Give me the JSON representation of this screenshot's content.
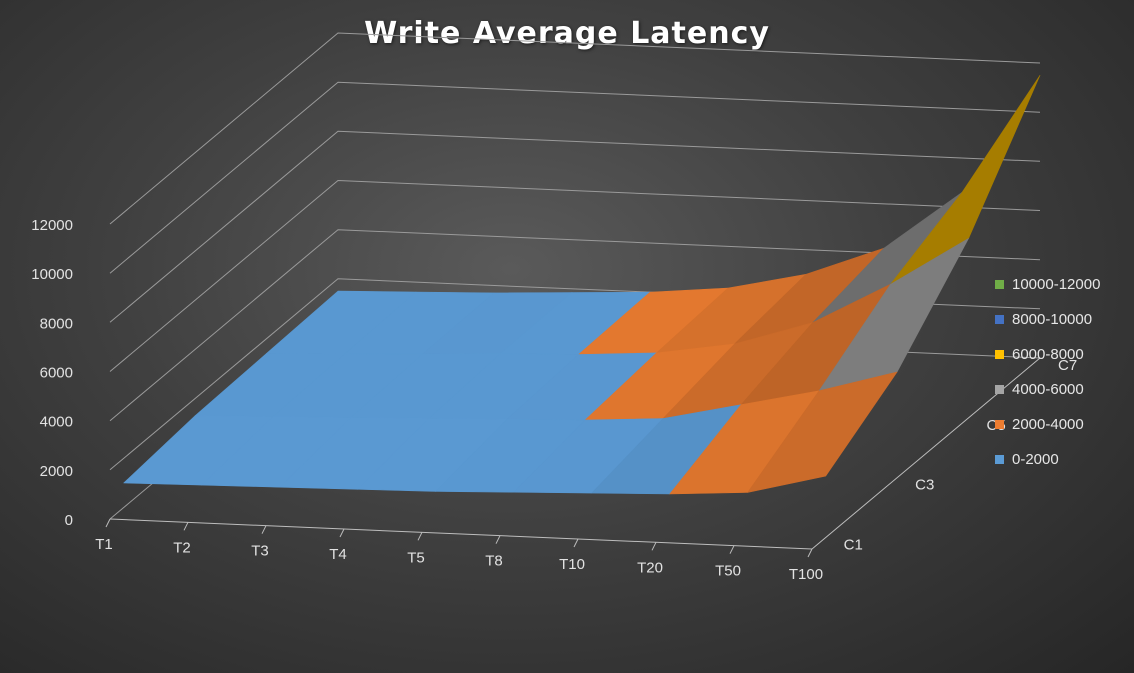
{
  "chart_data": {
    "type": "surface",
    "title": "Write Average Latency",
    "xlabel": "",
    "ylabel": "",
    "zlabel": "",
    "x_categories": [
      "T1",
      "T2",
      "T3",
      "T4",
      "T5",
      "T8",
      "T10",
      "T20",
      "T50",
      "T100"
    ],
    "y_categories": [
      "C1",
      "C3",
      "C5",
      "C7"
    ],
    "z_ticks": [
      "0",
      "2000",
      "4000",
      "6000",
      "8000",
      "10000",
      "12000"
    ],
    "zlim": [
      0,
      12000
    ],
    "series": [
      {
        "name": "C1",
        "values": [
          1000,
          1050,
          1100,
          1150,
          1200,
          1300,
          1400,
          1500,
          1700,
          2500
        ]
      },
      {
        "name": "C3",
        "values": [
          1300,
          1400,
          1500,
          1600,
          1700,
          1800,
          2000,
          2700,
          3400,
          4300
        ]
      },
      {
        "name": "C5",
        "values": [
          1400,
          1500,
          1650,
          1800,
          1900,
          2100,
          2600,
          3600,
          5300,
          7300
        ]
      },
      {
        "name": "C7",
        "values": [
          1500,
          1600,
          1700,
          1850,
          2000,
          2300,
          3000,
          4200,
          6600,
          11500
        ]
      }
    ],
    "legend": {
      "position": "right",
      "entries": [
        {
          "label": "10000-12000",
          "color": "#70ad47"
        },
        {
          "label": "8000-10000",
          "color": "#4472c4"
        },
        {
          "label": "6000-8000",
          "color": "#ffc000"
        },
        {
          "label": "4000-6000",
          "color": "#a5a5a5"
        },
        {
          "label": "2000-4000",
          "color": "#ed7d31"
        },
        {
          "label": "0-2000",
          "color": "#5b9bd5"
        }
      ]
    },
    "grid": true
  }
}
